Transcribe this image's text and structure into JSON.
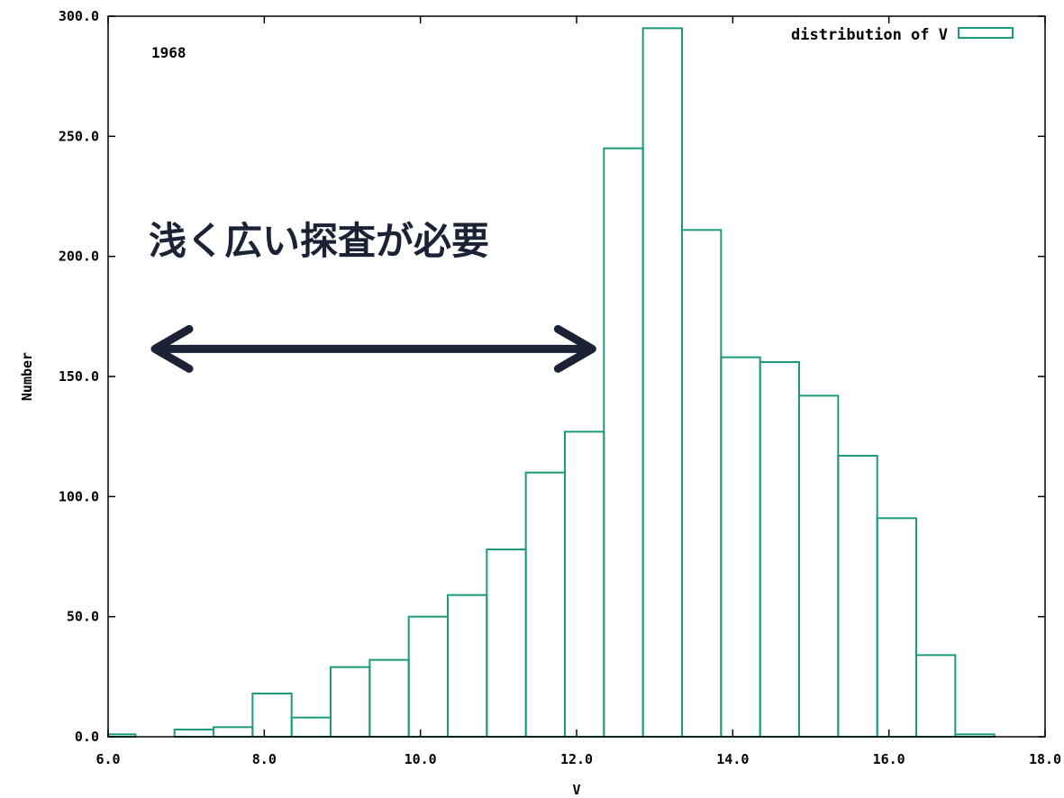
{
  "chart_data": {
    "type": "bar",
    "xlabel": "V",
    "ylabel": "Number",
    "xlim": [
      6.0,
      18.0
    ],
    "ylim": [
      0,
      300
    ],
    "x_ticks": [
      "6.0",
      "8.0",
      "10.0",
      "12.0",
      "14.0",
      "16.0",
      "18.0"
    ],
    "y_ticks": [
      "0.0",
      "50.0",
      "100.0",
      "150.0",
      "200.0",
      "250.0",
      "300.0"
    ],
    "bin_width": 0.5,
    "bins": [
      {
        "x0": 5.85,
        "x1": 6.35,
        "value": 1
      },
      {
        "x0": 6.85,
        "x1": 7.35,
        "value": 3
      },
      {
        "x0": 7.35,
        "x1": 7.85,
        "value": 4
      },
      {
        "x0": 7.85,
        "x1": 8.35,
        "value": 18
      },
      {
        "x0": 8.35,
        "x1": 8.85,
        "value": 8
      },
      {
        "x0": 8.85,
        "x1": 9.35,
        "value": 29
      },
      {
        "x0": 9.35,
        "x1": 9.85,
        "value": 32
      },
      {
        "x0": 9.85,
        "x1": 10.35,
        "value": 50
      },
      {
        "x0": 10.35,
        "x1": 10.85,
        "value": 59
      },
      {
        "x0": 10.85,
        "x1": 11.35,
        "value": 78
      },
      {
        "x0": 11.35,
        "x1": 11.85,
        "value": 110
      },
      {
        "x0": 11.85,
        "x1": 12.35,
        "value": 127
      },
      {
        "x0": 12.35,
        "x1": 12.85,
        "value": 245
      },
      {
        "x0": 12.85,
        "x1": 13.35,
        "value": 295
      },
      {
        "x0": 13.35,
        "x1": 13.85,
        "value": 211
      },
      {
        "x0": 13.85,
        "x1": 14.35,
        "value": 158
      },
      {
        "x0": 14.35,
        "x1": 14.85,
        "value": 156
      },
      {
        "x0": 14.85,
        "x1": 15.35,
        "value": 142
      },
      {
        "x0": 15.35,
        "x1": 15.85,
        "value": 117
      },
      {
        "x0": 15.85,
        "x1": 16.35,
        "value": 91
      },
      {
        "x0": 16.35,
        "x1": 16.85,
        "value": 34
      },
      {
        "x0": 16.85,
        "x1": 17.35,
        "value": 1
      }
    ],
    "legend": {
      "label": "distribution of V",
      "position": "top-right"
    },
    "series_color": "#1a9b7b",
    "annotations": {
      "year": "1968",
      "callout": "浅く広い探査が必要",
      "arrow_range": [
        6.6,
        12.2
      ],
      "arrow_level": 160,
      "arrow_color": "#1b2235"
    }
  }
}
